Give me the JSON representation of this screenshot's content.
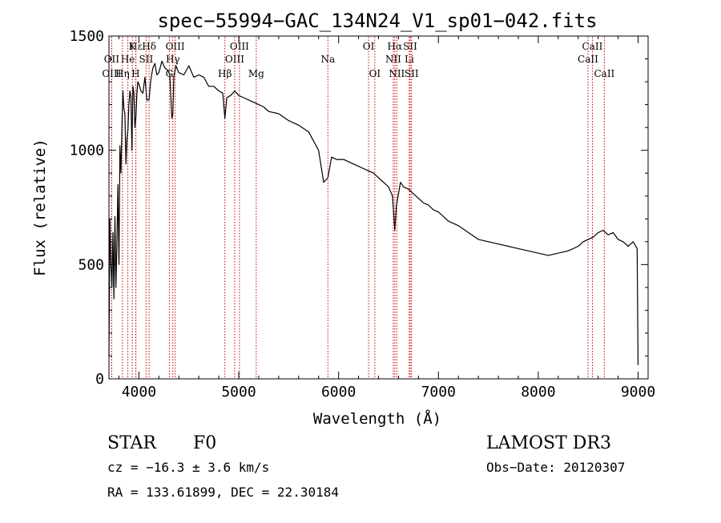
{
  "chart_data": {
    "type": "line",
    "title": "spec−55994−GAC_134N24_V1_sp01−042.fits",
    "xlabel": "Wavelength (Å)",
    "ylabel": "Flux (relative)",
    "xlim": [
      3700,
      9100
    ],
    "ylim": [
      0,
      1500
    ],
    "x_ticks": [
      4000,
      5000,
      6000,
      7000,
      8000,
      9000
    ],
    "y_ticks": [
      0,
      500,
      1000,
      1500
    ],
    "grid": false,
    "series": [
      {
        "name": "spectrum",
        "color": "#000000",
        "x": [
          3700,
          3710,
          3720,
          3730,
          3740,
          3750,
          3760,
          3770,
          3780,
          3790,
          3800,
          3810,
          3820,
          3830,
          3840,
          3850,
          3860,
          3870,
          3880,
          3890,
          3900,
          3910,
          3920,
          3930,
          3940,
          3950,
          3960,
          3970,
          3980,
          3990,
          4000,
          4020,
          4040,
          4060,
          4080,
          4101,
          4120,
          4140,
          4160,
          4180,
          4200,
          4230,
          4260,
          4290,
          4310,
          4330,
          4340,
          4350,
          4370,
          4400,
          4450,
          4500,
          4550,
          4600,
          4650,
          4700,
          4750,
          4800,
          4840,
          4861,
          4880,
          4920,
          4960,
          5000,
          5050,
          5100,
          5150,
          5200,
          5250,
          5300,
          5400,
          5500,
          5600,
          5700,
          5800,
          5850,
          5893,
          5930,
          5980,
          6050,
          6100,
          6150,
          6200,
          6250,
          6300,
          6350,
          6400,
          6450,
          6500,
          6540,
          6563,
          6580,
          6620,
          6650,
          6700,
          6750,
          6800,
          6850,
          6900,
          6950,
          7000,
          7100,
          7200,
          7300,
          7400,
          7500,
          7600,
          7700,
          7800,
          7900,
          8000,
          8100,
          8200,
          8300,
          8400,
          8450,
          8500,
          8550,
          8600,
          8650,
          8700,
          8750,
          8800,
          8850,
          8900,
          8950,
          8990,
          9000
        ],
        "values": [
          100,
          700,
          500,
          400,
          640,
          350,
          710,
          400,
          600,
          850,
          500,
          1020,
          900,
          1100,
          1260,
          1180,
          1160,
          940,
          1050,
          1090,
          1200,
          1260,
          1230,
          1000,
          1280,
          1250,
          1100,
          1150,
          1250,
          1300,
          1290,
          1260,
          1250,
          1320,
          1220,
          1220,
          1310,
          1360,
          1380,
          1330,
          1340,
          1390,
          1360,
          1350,
          1330,
          1140,
          1160,
          1320,
          1370,
          1340,
          1330,
          1370,
          1320,
          1330,
          1320,
          1280,
          1280,
          1260,
          1250,
          1140,
          1230,
          1240,
          1260,
          1240,
          1230,
          1220,
          1210,
          1200,
          1190,
          1170,
          1160,
          1130,
          1110,
          1080,
          1000,
          860,
          880,
          970,
          960,
          960,
          950,
          940,
          930,
          920,
          910,
          900,
          880,
          860,
          840,
          800,
          650,
          760,
          860,
          840,
          830,
          810,
          790,
          770,
          760,
          740,
          730,
          690,
          670,
          640,
          610,
          600,
          590,
          580,
          570,
          560,
          550,
          540,
          550,
          560,
          580,
          600,
          610,
          620,
          640,
          650,
          630,
          640,
          610,
          600,
          580,
          600,
          570,
          60
        ]
      }
    ],
    "lines": [
      {
        "label": "Hε",
        "wavelength": 3970,
        "row": 1
      },
      {
        "label": "K",
        "wavelength": 3934,
        "row": 1
      },
      {
        "label": "Hδ",
        "wavelength": 4102,
        "row": 1
      },
      {
        "label": "OIII",
        "wavelength": 4363,
        "row": 1
      },
      {
        "label": "OIII",
        "wavelength": 5007,
        "row": 1
      },
      {
        "label": "OI",
        "wavelength": 6300,
        "row": 1
      },
      {
        "label": "Hα",
        "wavelength": 6563,
        "row": 1
      },
      {
        "label": "SII",
        "wavelength": 6717,
        "row": 1
      },
      {
        "label": "CaII",
        "wavelength": 8542,
        "row": 1
      },
      {
        "label": "OII",
        "wavelength": 3727,
        "row": 2
      },
      {
        "label": "He",
        "wavelength": 3889,
        "row": 2
      },
      {
        "label": "SII",
        "wavelength": 4072,
        "row": 2
      },
      {
        "label": "Hγ",
        "wavelength": 4340,
        "row": 2
      },
      {
        "label": "OIII",
        "wavelength": 4959,
        "row": 2
      },
      {
        "label": "Na",
        "wavelength": 5893,
        "row": 2
      },
      {
        "label": "NII",
        "wavelength": 6548,
        "row": 2
      },
      {
        "label": "Li",
        "wavelength": 6708,
        "row": 2
      },
      {
        "label": "CaII",
        "wavelength": 8498,
        "row": 2
      },
      {
        "label": "OIII",
        "wavelength": 3727,
        "row": 3
      },
      {
        "label": "Hη",
        "wavelength": 3835,
        "row": 3
      },
      {
        "label": "H",
        "wavelength": 3968,
        "row": 3
      },
      {
        "label": "G",
        "wavelength": 4305,
        "row": 3
      },
      {
        "label": "Hβ",
        "wavelength": 4861,
        "row": 3
      },
      {
        "label": "Mg",
        "wavelength": 5175,
        "row": 3
      },
      {
        "label": "OI",
        "wavelength": 6363,
        "row": 3
      },
      {
        "label": "NII",
        "wavelength": 6583,
        "row": 3
      },
      {
        "label": "SII",
        "wavelength": 6731,
        "row": 3
      },
      {
        "label": "CaII",
        "wavelength": 8662,
        "row": 3
      }
    ],
    "line_color": "#cc0000"
  },
  "info": {
    "class_label": "STAR",
    "subclass_label": "F0",
    "survey": "LAMOST DR3",
    "cz": "cz = −16.3 ± 3.6 km/s",
    "obs_date": "Obs−Date: 20120307",
    "radec": "RA = 133.61899, DEC =  22.30184"
  }
}
